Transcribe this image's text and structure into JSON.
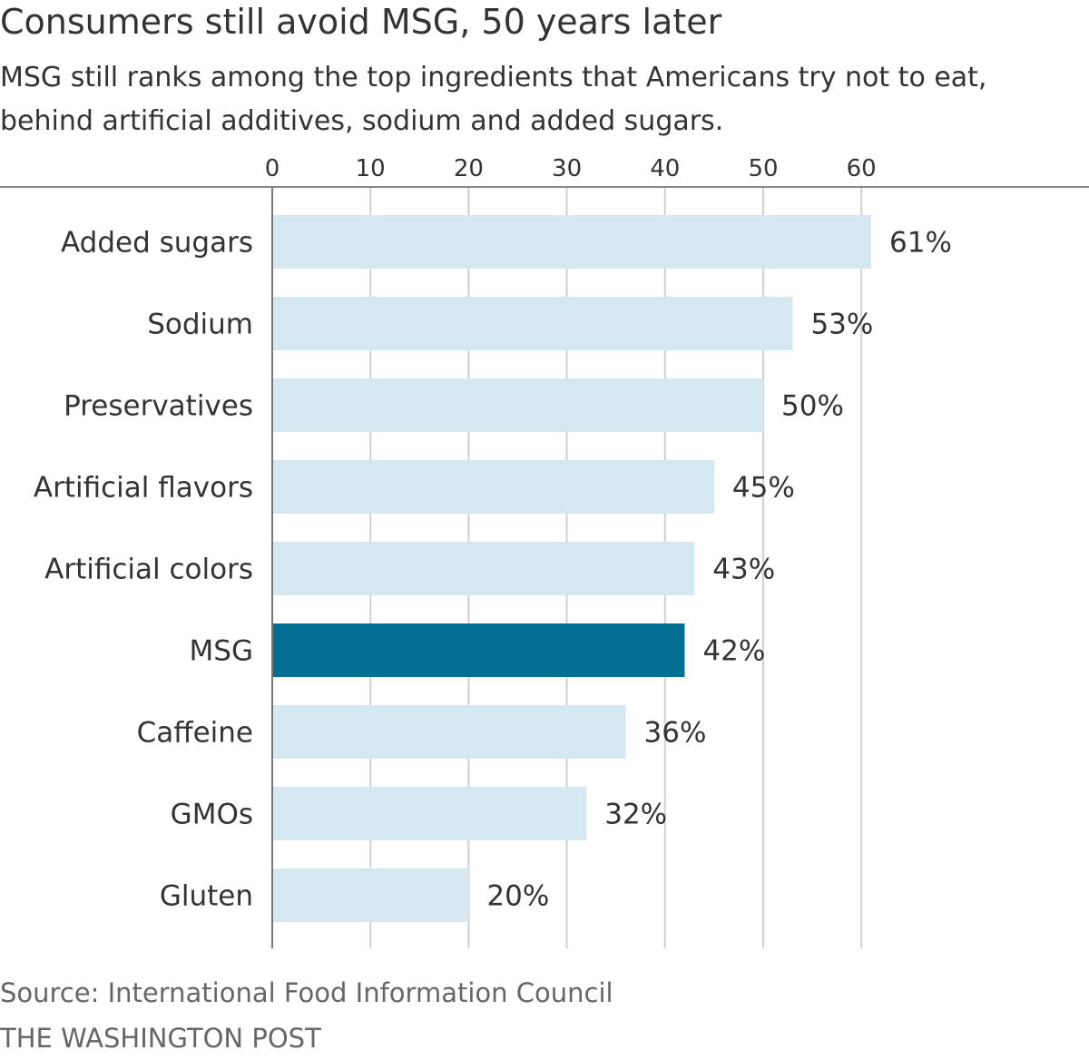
{
  "header": {
    "title": "Consumers still avoid MSG, 50 years later",
    "subtitle": "MSG still ranks among the top ingredients that Americans try not to eat, behind artificial additives, sodium and added sugars."
  },
  "footer": {
    "source": "Source: International Food Information Council",
    "credit": "THE WASHINGTON POST"
  },
  "colors": {
    "bar_default": "#d5e7f1",
    "bar_highlight": "#036f93",
    "gridline": "#d0d0d0",
    "axis": "#888888",
    "text": "#333333"
  },
  "chart_data": {
    "type": "bar",
    "orientation": "horizontal",
    "title": "Consumers still avoid MSG, 50 years later",
    "subtitle": "MSG still ranks among the top ingredients that Americans try not to eat, behind artificial additives, sodium and added sugars.",
    "xlabel": "",
    "ylabel": "",
    "xlim": [
      0,
      60
    ],
    "xticks": [
      0,
      10,
      20,
      30,
      40,
      50,
      60
    ],
    "xtick_labels": [
      "0",
      "10",
      "20",
      "30",
      "40",
      "50",
      "60"
    ],
    "grid": true,
    "categories": [
      "Added sugars",
      "Sodium",
      "Preservatives",
      "Artificial flavors",
      "Artificial colors",
      "MSG",
      "Caffeine",
      "GMOs",
      "Gluten"
    ],
    "values": [
      61,
      53,
      50,
      45,
      43,
      42,
      36,
      32,
      20
    ],
    "value_labels": [
      "61%",
      "53%",
      "50%",
      "45%",
      "43%",
      "42%",
      "36%",
      "32%",
      "20%"
    ],
    "highlight": "MSG",
    "units": "%"
  }
}
